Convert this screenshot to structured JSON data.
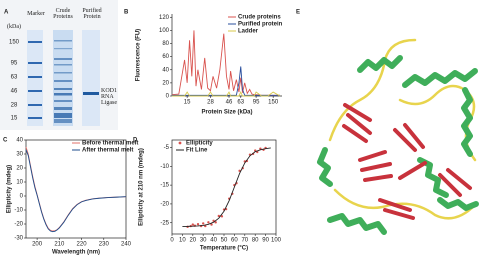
{
  "panel_labels": [
    "A",
    "B",
    "C",
    "D",
    "E"
  ],
  "gel": {
    "unit_label": "(kDa)",
    "marker_sizes": [
      150,
      95,
      63,
      46,
      28,
      15
    ],
    "lanes": [
      "Marker",
      "Crude Proteins",
      "Purified Protein"
    ],
    "band_label": "KOD1 RNA Ligase"
  },
  "chart_data": [
    {
      "type": "line",
      "xlabel": "Protein Size (kDa)",
      "ylabel": "Fluorescence (FU)",
      "xscale": "log",
      "frame": "axes",
      "legend": "upper right",
      "x": [
        10,
        12,
        14,
        15,
        16,
        17,
        18,
        19,
        20,
        22,
        24,
        26,
        28,
        30,
        33,
        36,
        40,
        43,
        46,
        48,
        52,
        56,
        60,
        63,
        66,
        70,
        75,
        80,
        85,
        90,
        95,
        110,
        130,
        150,
        180
      ],
      "xlim": [
        10,
        190
      ],
      "xticks": [
        15,
        28,
        46,
        63,
        95,
        150
      ],
      "ylim": [
        0,
        125
      ],
      "yticks": [
        0,
        20,
        40,
        60,
        80,
        100,
        120
      ],
      "series": [
        {
          "name": "Crude proteins",
          "color": "#d9534f",
          "values": [
            2,
            3,
            55,
            20,
            85,
            30,
            100,
            15,
            40,
            10,
            58,
            12,
            8,
            30,
            12,
            40,
            95,
            30,
            10,
            38,
            8,
            25,
            6,
            28,
            5,
            20,
            4,
            10,
            3,
            2,
            2,
            1,
            1,
            1,
            1
          ]
        },
        {
          "name": "Purified protein",
          "color": "#2a4f9e",
          "values": [
            1,
            1,
            1,
            1,
            1,
            1,
            1,
            1,
            1,
            1,
            1,
            1,
            1,
            1,
            1,
            1,
            1,
            1,
            1,
            1,
            1,
            1,
            20,
            45,
            10,
            1,
            1,
            1,
            1,
            1,
            1,
            1,
            1,
            1,
            1
          ]
        },
        {
          "name": "Ladder",
          "color": "#d8c94a",
          "values": [
            0,
            0,
            0,
            6,
            0,
            0,
            0,
            0,
            0,
            0,
            0,
            0,
            6,
            0,
            0,
            0,
            0,
            0,
            6,
            0,
            0,
            0,
            0,
            6,
            0,
            0,
            0,
            0,
            0,
            0,
            6,
            0,
            0,
            6,
            0
          ]
        }
      ]
    },
    {
      "type": "line",
      "xlabel": "Wavelength (nm)",
      "ylabel": "Ellipticity (mdeg)",
      "frame": "box",
      "legend": "upper right",
      "x": [
        195,
        196,
        197,
        198,
        199,
        200,
        201,
        202,
        203,
        204,
        205,
        206,
        207,
        208,
        209,
        210,
        212,
        214,
        216,
        218,
        220,
        222,
        225,
        228,
        232,
        236,
        240
      ],
      "xlim": [
        195,
        240
      ],
      "xticks": [
        200,
        210,
        220,
        230,
        240
      ],
      "ylim": [
        -30,
        40
      ],
      "yticks": [
        -30,
        -20,
        -10,
        0,
        10,
        20,
        30,
        40
      ],
      "series": [
        {
          "name": "Before thermal melt",
          "color": "#e0706a",
          "values": [
            35,
            30,
            22,
            14,
            7,
            1,
            -5,
            -11,
            -16,
            -20,
            -23,
            -24.5,
            -25,
            -24.8,
            -24,
            -22.5,
            -18.5,
            -13.5,
            -9,
            -6,
            -4,
            -3,
            -2,
            -1.5,
            -1,
            -0.8,
            -0.5
          ]
        },
        {
          "name": "After thermal melt",
          "color": "#1f4e8c",
          "values": [
            33,
            29,
            21,
            13,
            6,
            0.5,
            -5.5,
            -11.5,
            -16.5,
            -20.5,
            -23.5,
            -25,
            -25.5,
            -25.2,
            -24.2,
            -22.8,
            -18.8,
            -13.8,
            -9.3,
            -6.2,
            -4.2,
            -3.2,
            -2.1,
            -1.6,
            -1.1,
            -0.8,
            -0.5
          ]
        }
      ]
    },
    {
      "type": "scatter",
      "xlabel": "Temperature (°C)",
      "ylabel": "Ellipticity at 210 nm (mdeg)",
      "frame": "box",
      "legend": "upper left",
      "xlim": [
        0,
        100
      ],
      "xticks": [
        0,
        10,
        20,
        30,
        40,
        50,
        60,
        70,
        80,
        90,
        100
      ],
      "ylim": [
        -28,
        -3
      ],
      "yticks": [
        -25,
        -20,
        -15,
        -10,
        -5
      ],
      "series": [
        {
          "name": "Ellipticity",
          "color": "#d9534f",
          "x": [
            15,
            18,
            20,
            22,
            25,
            28,
            30,
            32,
            35,
            38,
            40,
            42,
            45,
            48,
            50,
            52,
            55,
            58,
            60,
            62,
            65,
            68,
            70,
            72,
            75,
            78,
            80,
            82,
            85,
            88,
            90
          ],
          "values": [
            -26.1,
            -25.9,
            -25.5,
            -25.8,
            -25.4,
            -25.9,
            -25.2,
            -25.9,
            -24.9,
            -25.5,
            -24.5,
            -24.9,
            -23.2,
            -23.3,
            -21.5,
            -21.4,
            -18.6,
            -17.3,
            -15.0,
            -14.5,
            -11.2,
            -10.5,
            -8.7,
            -8.6,
            -6.9,
            -6.7,
            -5.8,
            -6.2,
            -5.3,
            -5.6,
            -5.1
          ]
        },
        {
          "name": "Fit Line",
          "type": "line",
          "color": "#222222",
          "x": [
            10,
            15,
            20,
            25,
            30,
            35,
            40,
            45,
            50,
            55,
            60,
            65,
            70,
            75,
            80,
            85,
            90,
            95
          ],
          "values": [
            -25.98,
            -25.97,
            -25.93,
            -25.86,
            -25.72,
            -25.42,
            -24.86,
            -23.79,
            -21.94,
            -19.1,
            -15.5,
            -11.9,
            -9.1,
            -7.2,
            -6.1,
            -5.6,
            -5.3,
            -5.1
          ]
        }
      ]
    }
  ]
}
